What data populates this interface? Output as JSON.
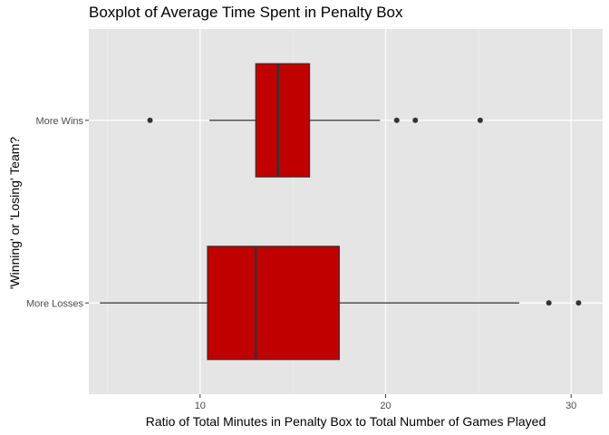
{
  "chart_data": {
    "type": "boxplot",
    "title": "Boxplot of Average Time Spent in Penalty Box",
    "xlabel": "Ratio of Total Minutes in Penalty Box to Total Number of Games Played",
    "ylabel": "'Winning' or 'Losing' Team?",
    "xlim": [
      4.0,
      31.7
    ],
    "xticks": [
      10,
      20,
      30
    ],
    "xtick_labels": [
      "10",
      "20",
      "30"
    ],
    "grid": true,
    "orientation": "horizontal",
    "fill_color": "#c00000",
    "panel_color": "#e5e5e5",
    "categories": [
      "More Wins",
      "More Losses"
    ],
    "boxes": [
      {
        "category": "More Wins",
        "whisker_low": 10.5,
        "q1": 13.0,
        "median": 14.2,
        "q3": 15.9,
        "whisker_high": 19.7,
        "outliers": [
          7.3,
          20.6,
          21.6,
          25.1
        ]
      },
      {
        "category": "More Losses",
        "whisker_low": 4.6,
        "q1": 10.4,
        "median": 13.0,
        "q3": 17.5,
        "whisker_high": 27.2,
        "outliers": [
          28.8,
          30.4
        ]
      }
    ]
  }
}
